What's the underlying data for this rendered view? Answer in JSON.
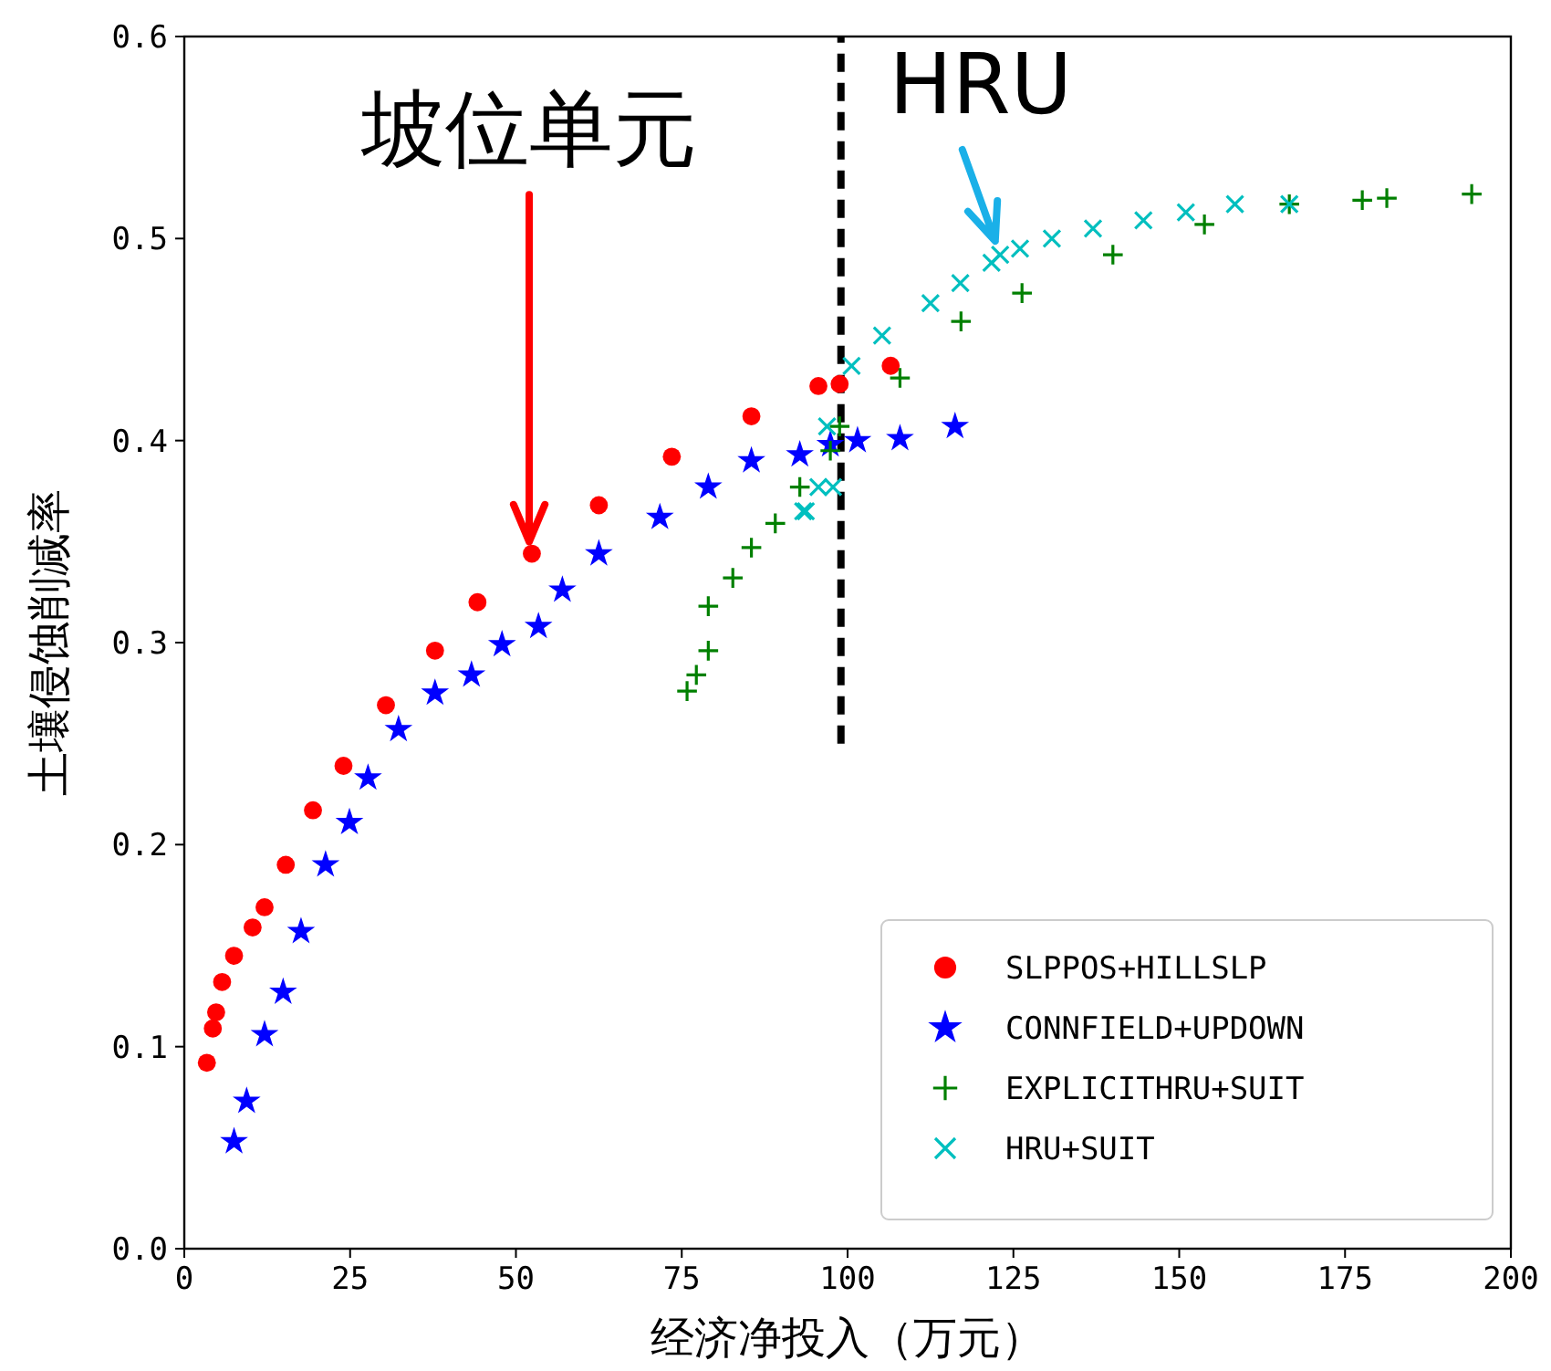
{
  "chart_data": {
    "type": "scatter",
    "xlabel": "经济净投入（万元）",
    "ylabel": "土壤侵蚀削减率",
    "xlim": [
      0,
      200
    ],
    "xticks": [
      0,
      25,
      50,
      75,
      100,
      125,
      150,
      175,
      200
    ],
    "ylim": [
      0,
      0.6
    ],
    "yticks": [
      {
        "value": 0,
        "label": "0.0"
      },
      {
        "value": 0.1,
        "label": "0.1"
      },
      {
        "value": 0.2,
        "label": "0.2"
      },
      {
        "value": 0.3,
        "label": "0.3"
      },
      {
        "value": 0.4,
        "label": "0.4"
      },
      {
        "value": 0.5,
        "label": "0.5"
      },
      {
        "value": 0.6,
        "label": "0.6"
      }
    ],
    "grid": false,
    "legend": "bottom right",
    "annotations": [
      {
        "text": "坡位单元",
        "x": 52,
        "y": 0.35
      },
      {
        "text": "HRU",
        "x": 123,
        "y": 0.492
      }
    ],
    "series": [
      {
        "type": "line",
        "color": "#000000",
        "line_style": "dashed",
        "marker": "none",
        "x": [
          99,
          99
        ],
        "values": [
          0.25,
          0.6
        ]
      },
      {
        "name": "SLPPOS+HILLSLP",
        "color": "#ff0000",
        "marker": "circle",
        "x": [
          3.4,
          4.3,
          4.8,
          5.7,
          7.5,
          10.3,
          12.1,
          15.3,
          19.4,
          24,
          30.4,
          37.8,
          44.2,
          52.4,
          62.5,
          73.5,
          85.5,
          95.6,
          98.8,
          106.5
        ],
        "values": [
          0.092,
          0.109,
          0.117,
          0.132,
          0.145,
          0.159,
          0.169,
          0.19,
          0.217,
          0.239,
          0.269,
          0.296,
          0.32,
          0.344,
          0.368,
          0.392,
          0.412,
          0.427,
          0.428,
          0.437
        ]
      },
      {
        "name": "CONNFIELD+UPDOWN",
        "color": "#0000ff",
        "marker": "star",
        "x": [
          7.5,
          9.4,
          12.1,
          14.9,
          17.6,
          21.3,
          24.9,
          27.7,
          32.3,
          37.8,
          43.3,
          47.9,
          53.4,
          57,
          62.5,
          71.7,
          79,
          85.5,
          92.8,
          97.4,
          101.5,
          107.9,
          116.2
        ],
        "values": [
          0.053,
          0.073,
          0.106,
          0.127,
          0.157,
          0.19,
          0.211,
          0.233,
          0.257,
          0.275,
          0.284,
          0.299,
          0.308,
          0.326,
          0.344,
          0.362,
          0.377,
          0.39,
          0.393,
          0.398,
          0.4,
          0.401,
          0.407
        ]
      },
      {
        "name": "EXPLICITHRU+SUIT",
        "color": "#008000",
        "marker": "plus",
        "x": [
          75.8,
          77.2,
          79,
          79,
          82.7,
          85.5,
          89.1,
          92.8,
          97.4,
          98.8,
          107.9,
          117.1,
          126.3,
          140,
          153.8,
          166.6,
          177.6,
          181.3,
          194.1
        ],
        "values": [
          0.276,
          0.284,
          0.296,
          0.318,
          0.332,
          0.347,
          0.359,
          0.377,
          0.395,
          0.407,
          0.431,
          0.459,
          0.473,
          0.492,
          0.507,
          0.517,
          0.519,
          0.52,
          0.522
        ]
      },
      {
        "name": "HRU+SUIT",
        "color": "#00bfbf",
        "marker": "cross",
        "x": [
          93.3,
          93.7,
          95.6,
          97.8,
          96.9,
          100.6,
          105.2,
          112.5,
          117,
          121.7,
          123,
          126,
          130.8,
          137,
          144.6,
          151,
          158.4,
          166.6
        ],
        "values": [
          0.365,
          0.365,
          0.377,
          0.377,
          0.407,
          0.437,
          0.452,
          0.468,
          0.478,
          0.488,
          0.492,
          0.495,
          0.5,
          0.505,
          0.509,
          0.513,
          0.517,
          0.517
        ]
      }
    ]
  }
}
